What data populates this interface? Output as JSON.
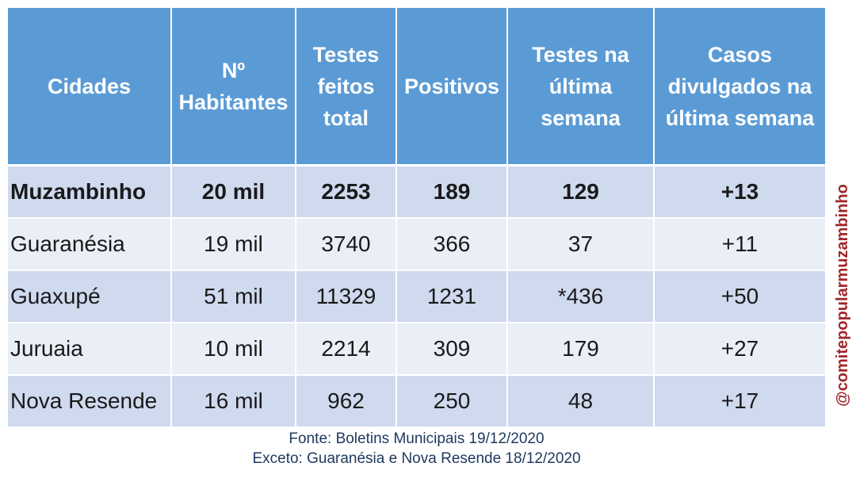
{
  "table": {
    "headers": [
      "Cidades",
      "Nº\nHabitantes",
      "Testes\nfeitos\ntotal",
      "Positivos",
      "Testes na\núltima\nsemana",
      "Casos\ndivulgados na\núltima semana"
    ],
    "rows": [
      [
        "Muzambinho",
        "20 mil",
        "2253",
        "189",
        "129",
        "+13"
      ],
      [
        "Guaranésia",
        "19 mil",
        "3740",
        "366",
        "37",
        "+11"
      ],
      [
        "Guaxupé",
        "51 mil",
        "11329",
        "1231",
        "*436",
        "+50"
      ],
      [
        "Juruaia",
        "10 mil",
        "2214",
        "309",
        "179",
        "+27"
      ],
      [
        "Nova Resende",
        "16 mil",
        "962",
        "250",
        "48",
        "+17"
      ]
    ]
  },
  "footer": {
    "line1": "Fonte:  Boletins Municipais 19/12/2020",
    "line2": "Exceto: Guaranésia e Nova Resende 18/12/2020"
  },
  "watermark": "@comitepopularmuzambinho",
  "colors": {
    "header_bg": "#5b9bd5",
    "row_dark": "#cfdaef",
    "row_light": "#e9eef7",
    "watermark": "#a0272b",
    "footer_text": "#1f3a60"
  }
}
